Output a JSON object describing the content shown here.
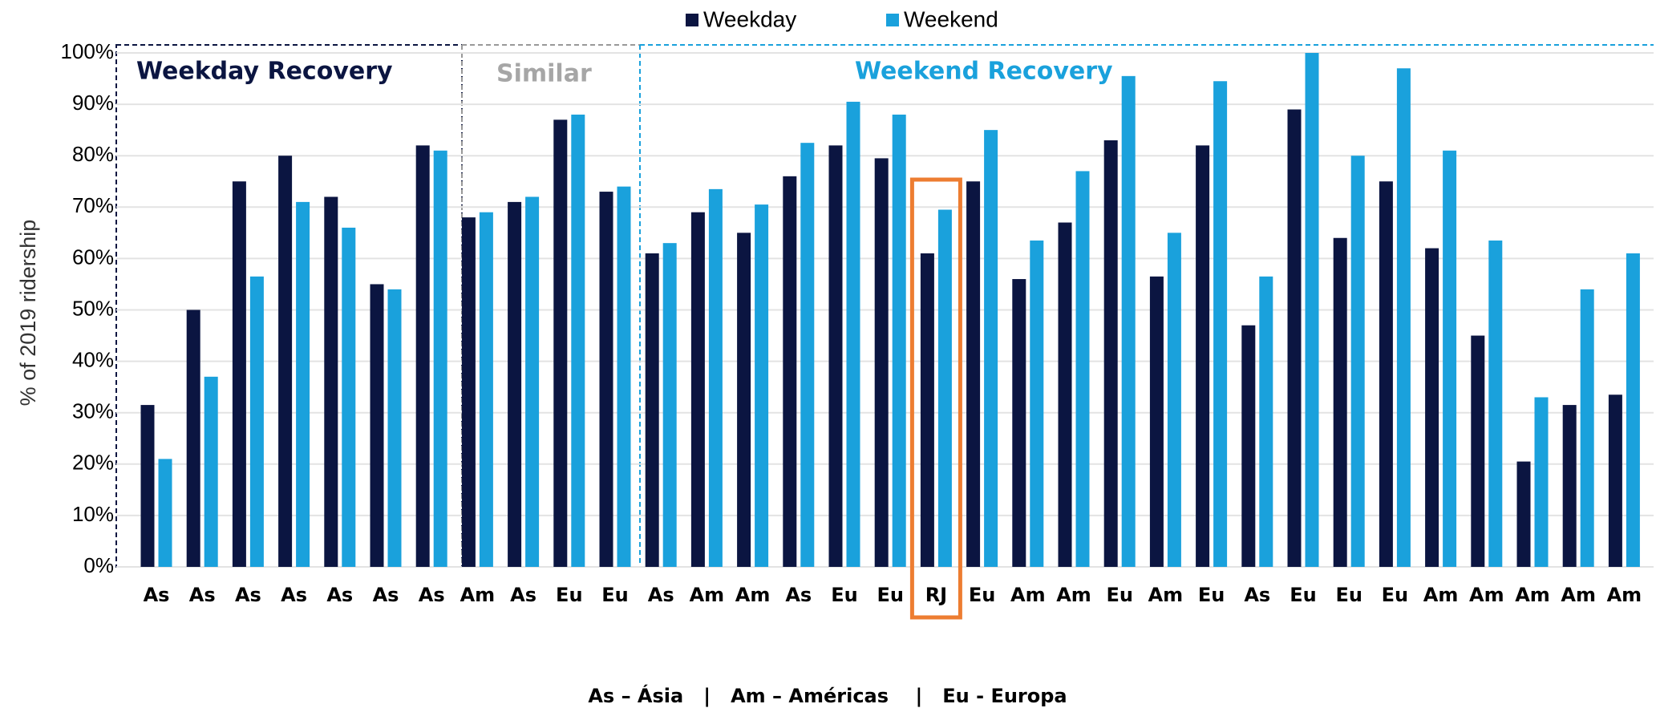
{
  "chart_data": {
    "type": "bar",
    "y_label": "% of 2019 ridership",
    "categories": [
      "As",
      "As",
      "As",
      "As",
      "As",
      "As",
      "As",
      "Am",
      "As",
      "Eu",
      "Eu",
      "As",
      "Am",
      "Am",
      "As",
      "Eu",
      "Eu",
      "RJ",
      "Eu",
      "Am",
      "Am",
      "Eu",
      "Am",
      "Eu",
      "As",
      "Eu",
      "Eu",
      "Eu",
      "Am",
      "Am",
      "Am",
      "Am",
      "Am"
    ],
    "series": [
      {
        "name": "Weekday",
        "color": "#0b1541",
        "values": [
          31.5,
          50,
          75,
          80,
          72,
          55,
          82,
          68,
          71,
          87,
          73,
          61,
          69,
          65,
          76,
          82,
          79.5,
          61,
          75,
          56,
          67,
          83,
          56.5,
          82,
          47,
          89,
          64,
          75,
          62,
          45,
          20.5,
          31.5,
          33.5
        ]
      },
      {
        "name": "Weekend",
        "color": "#1aa1dc",
        "values": [
          21,
          37,
          56.5,
          71,
          66,
          54,
          81,
          69,
          72,
          88,
          74,
          63,
          73.5,
          70.5,
          82.5,
          90.5,
          88,
          69.5,
          85,
          63.5,
          77,
          95.5,
          65,
          94.5,
          56.5,
          100,
          80,
          97,
          81,
          63.5,
          33,
          54,
          61
        ]
      }
    ],
    "ylim": [
      0,
      100
    ],
    "yticks": [
      {
        "value": 0,
        "label": "0%"
      },
      {
        "value": 10,
        "label": "10%"
      },
      {
        "value": 20,
        "label": "20%"
      },
      {
        "value": 30,
        "label": "30%"
      },
      {
        "value": 40,
        "label": "40%"
      },
      {
        "value": 50,
        "label": "50%"
      },
      {
        "value": 60,
        "label": "60%"
      },
      {
        "value": 70,
        "label": "70%"
      },
      {
        "value": 80,
        "label": "80%"
      },
      {
        "value": 90,
        "label": "90%"
      },
      {
        "value": 100,
        "label": "100%"
      }
    ],
    "grid": true,
    "legend": "top",
    "annotations": [
      "Weekday Recovery",
      "Similar",
      "Weekend Recovery"
    ],
    "footnote": "As – Ásia   |   Am – Américas    |   Eu - Europa"
  }
}
